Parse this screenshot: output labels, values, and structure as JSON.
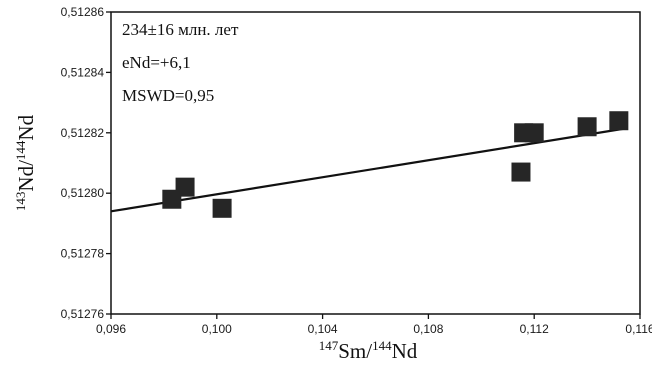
{
  "chart_data": {
    "type": "scatter",
    "x_axis": {
      "label_sup": "147",
      "label_main": "Sm/",
      "label_sup2": "144",
      "label_tail": "Nd",
      "min": 0.096,
      "max": 0.116,
      "ticks": [
        0.096,
        0.1,
        0.104,
        0.108,
        0.112,
        0.116
      ],
      "tick_labels": [
        "0,096",
        "0,100",
        "0,104",
        "0,108",
        "0,112",
        "0,116"
      ]
    },
    "y_axis": {
      "label_sup": "143",
      "label_main": "Nd/",
      "label_sup2": "144",
      "label_tail": "Nd",
      "min": 0.51276,
      "max": 0.51286,
      "ticks": [
        0.51276,
        0.51278,
        0.5128,
        0.51282,
        0.51284,
        0.51286
      ],
      "tick_labels": [
        "0,51276",
        "0,51278",
        "0,51280",
        "0,51282",
        "0,51284",
        "0,51286"
      ]
    },
    "points": [
      {
        "x": 0.0983,
        "y": 0.512798
      },
      {
        "x": 0.0988,
        "y": 0.512802
      },
      {
        "x": 0.1002,
        "y": 0.512795
      },
      {
        "x": 0.1115,
        "y": 0.512807
      },
      {
        "x": 0.1116,
        "y": 0.51282
      },
      {
        "x": 0.112,
        "y": 0.51282
      },
      {
        "x": 0.114,
        "y": 0.512822
      },
      {
        "x": 0.1152,
        "y": 0.512824
      }
    ],
    "isochron": {
      "x1": 0.096,
      "y1": 0.512794,
      "x2": 0.1155,
      "y2": 0.5128215
    },
    "annotations": [
      "234±16 млн. лет",
      "eNd=+6,1",
      "MSWD=0,95"
    ],
    "grid": false,
    "colors": {
      "marker": "#262626",
      "line": "#111111",
      "axis": "#111111"
    }
  }
}
